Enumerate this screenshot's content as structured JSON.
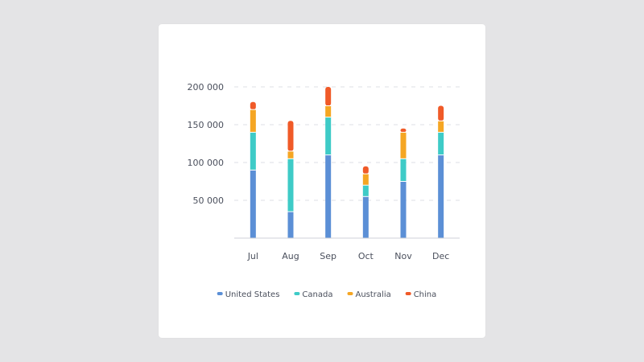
{
  "chart_data": {
    "type": "bar",
    "stacked": true,
    "categories": [
      "Jul",
      "Aug",
      "Sep",
      "Oct",
      "Nov",
      "Dec"
    ],
    "series": [
      {
        "name": "United States",
        "color": "#5b8fd6",
        "values": [
          90000,
          35000,
          110000,
          55000,
          75000,
          110000
        ]
      },
      {
        "name": "Canada",
        "color": "#3ecbc7",
        "values": [
          50000,
          70000,
          50000,
          15000,
          30000,
          30000
        ]
      },
      {
        "name": "Australia",
        "color": "#f5a623",
        "values": [
          30000,
          10000,
          15000,
          15000,
          35000,
          15000
        ]
      },
      {
        "name": "China",
        "color": "#f05a28",
        "values": [
          10000,
          40000,
          25000,
          10000,
          5000,
          20000
        ]
      }
    ],
    "ylim": [
      0,
      200000
    ],
    "yticks": [
      50000,
      100000,
      150000,
      200000
    ],
    "ytick_labels": [
      "50 000",
      "100 000",
      "150 000",
      "200 000"
    ],
    "grid": true,
    "legend_position": "bottom",
    "title": "",
    "xlabel": "",
    "ylabel": ""
  }
}
